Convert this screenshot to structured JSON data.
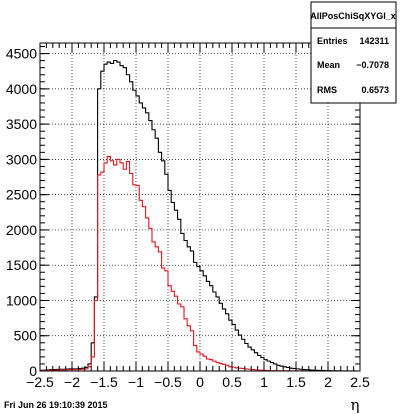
{
  "chart_data": {
    "type": "histogram",
    "xlabel": "η",
    "ylabel": "",
    "xlim": [
      -2.5,
      2.5
    ],
    "ylim": [
      0,
      4650
    ],
    "bin_width": 0.05,
    "x_ticks": [
      -2.5,
      -2,
      -1.5,
      -1,
      -0.5,
      0,
      0.5,
      1,
      1.5,
      2,
      2.5
    ],
    "x_tick_labels": [
      "−2.5",
      "−2",
      "−1.5",
      "−1",
      "−0.5",
      "0",
      "0.5",
      "1",
      "1.5",
      "2",
      "2.5"
    ],
    "y_ticks": [
      0,
      500,
      1000,
      1500,
      2000,
      2500,
      3000,
      3500,
      4000,
      4500
    ],
    "y_tick_labels": [
      "0",
      "500",
      "1000",
      "1500",
      "2000",
      "2500",
      "3000",
      "3500",
      "4000",
      "4500"
    ],
    "grid": true,
    "series": [
      {
        "name": "AllPosChiSqXYGl_x",
        "color": "#000000",
        "x": [
          -2.5,
          -2.45,
          -2.4,
          -2.35,
          -2.3,
          -2.25,
          -2.2,
          -2.15,
          -2.1,
          -2.05,
          -2.0,
          -1.95,
          -1.9,
          -1.85,
          -1.8,
          -1.75,
          -1.7,
          -1.65,
          -1.6,
          -1.55,
          -1.5,
          -1.45,
          -1.4,
          -1.35,
          -1.3,
          -1.25,
          -1.2,
          -1.15,
          -1.1,
          -1.05,
          -1.0,
          -0.95,
          -0.9,
          -0.85,
          -0.8,
          -0.75,
          -0.7,
          -0.65,
          -0.6,
          -0.55,
          -0.5,
          -0.45,
          -0.4,
          -0.35,
          -0.3,
          -0.25,
          -0.2,
          -0.15,
          -0.1,
          -0.05,
          0.0,
          0.05,
          0.1,
          0.15,
          0.2,
          0.25,
          0.3,
          0.35,
          0.4,
          0.45,
          0.5,
          0.55,
          0.6,
          0.65,
          0.7,
          0.75,
          0.8,
          0.85,
          0.9,
          0.95,
          1.0,
          1.05,
          1.1,
          1.15,
          1.2,
          1.25,
          1.3,
          1.35,
          1.4,
          1.45,
          1.5,
          1.55,
          1.6,
          1.65,
          1.7,
          1.75,
          1.8,
          1.85,
          1.9,
          1.95,
          2.0,
          2.05,
          2.1,
          2.15,
          2.2,
          2.25,
          2.3,
          2.35,
          2.4,
          2.45
        ],
        "values": [
          10,
          12,
          15,
          18,
          20,
          22,
          25,
          25,
          28,
          30,
          30,
          30,
          35,
          40,
          50,
          100,
          400,
          1050,
          4000,
          4250,
          4350,
          4380,
          4360,
          4400,
          4380,
          4330,
          4300,
          4200,
          4100,
          3980,
          3900,
          3800,
          3730,
          3660,
          3550,
          3420,
          3300,
          3100,
          2980,
          2790,
          2560,
          2390,
          2280,
          2150,
          1950,
          1850,
          1760,
          1700,
          1540,
          1480,
          1420,
          1350,
          1270,
          1210,
          1120,
          1050,
          960,
          880,
          810,
          720,
          660,
          580,
          510,
          450,
          390,
          340,
          300,
          260,
          220,
          190,
          160,
          140,
          120,
          100,
          80,
          70,
          60,
          50,
          40,
          35,
          30,
          25,
          20,
          18,
          15,
          12,
          10,
          8,
          6,
          5,
          4,
          3,
          2,
          2,
          1,
          1,
          1,
          1,
          1,
          0
        ]
      },
      {
        "name": "",
        "color": "#e0141e",
        "x": [
          -2.5,
          -2.45,
          -2.4,
          -2.35,
          -2.3,
          -2.25,
          -2.2,
          -2.15,
          -2.1,
          -2.05,
          -2.0,
          -1.95,
          -1.9,
          -1.85,
          -1.8,
          -1.75,
          -1.7,
          -1.65,
          -1.6,
          -1.55,
          -1.5,
          -1.45,
          -1.4,
          -1.35,
          -1.3,
          -1.25,
          -1.2,
          -1.15,
          -1.1,
          -1.05,
          -1.0,
          -0.95,
          -0.9,
          -0.85,
          -0.8,
          -0.75,
          -0.7,
          -0.65,
          -0.6,
          -0.55,
          -0.5,
          -0.45,
          -0.4,
          -0.35,
          -0.3,
          -0.25,
          -0.2,
          -0.15,
          -0.1,
          -0.05,
          0.0,
          0.05,
          0.1,
          0.15,
          0.2,
          0.25,
          0.3,
          0.35,
          0.4,
          0.45,
          0.5,
          0.55,
          0.6,
          0.65,
          0.7,
          0.75,
          0.8,
          0.85,
          0.9,
          0.95,
          1.0,
          1.05,
          1.1,
          1.15,
          1.2,
          1.25,
          1.3,
          1.35,
          1.4,
          1.45,
          1.5,
          1.55,
          1.6,
          1.65,
          1.7,
          1.75,
          1.8,
          1.85,
          1.9,
          1.95,
          2.0,
          2.05,
          2.1,
          2.15,
          2.2,
          2.25,
          2.3,
          2.35,
          2.4,
          2.45
        ],
        "values": [
          5,
          6,
          8,
          10,
          12,
          14,
          16,
          17,
          18,
          20,
          20,
          20,
          22,
          25,
          30,
          60,
          200,
          1000,
          2780,
          2820,
          2950,
          3040,
          2980,
          2920,
          3000,
          2950,
          2860,
          2970,
          2800,
          2640,
          2630,
          2420,
          2330,
          2170,
          2020,
          1830,
          1760,
          1690,
          1460,
          1420,
          1210,
          1130,
          1060,
          950,
          910,
          740,
          640,
          570,
          360,
          270,
          240,
          210,
          170,
          160,
          140,
          120,
          105,
          95,
          80,
          60,
          55,
          45,
          40,
          35,
          30,
          25,
          20,
          16,
          12,
          10,
          8,
          6,
          5,
          4,
          3,
          3,
          2,
          2,
          1,
          1,
          1,
          1,
          1,
          0,
          0,
          0,
          0,
          0,
          0,
          0,
          0,
          0,
          0,
          0,
          0,
          0,
          0,
          0,
          0,
          0
        ]
      }
    ]
  },
  "stats_box": {
    "title": "AllPosChiSqXYGl_x",
    "rows": [
      {
        "label": "Entries",
        "value": "142311"
      },
      {
        "label": "Mean",
        "value": "−0.7078"
      },
      {
        "label": "RMS",
        "value": "0.6573"
      }
    ]
  },
  "footer": "Fri Jun 26 19:10:39 2015"
}
